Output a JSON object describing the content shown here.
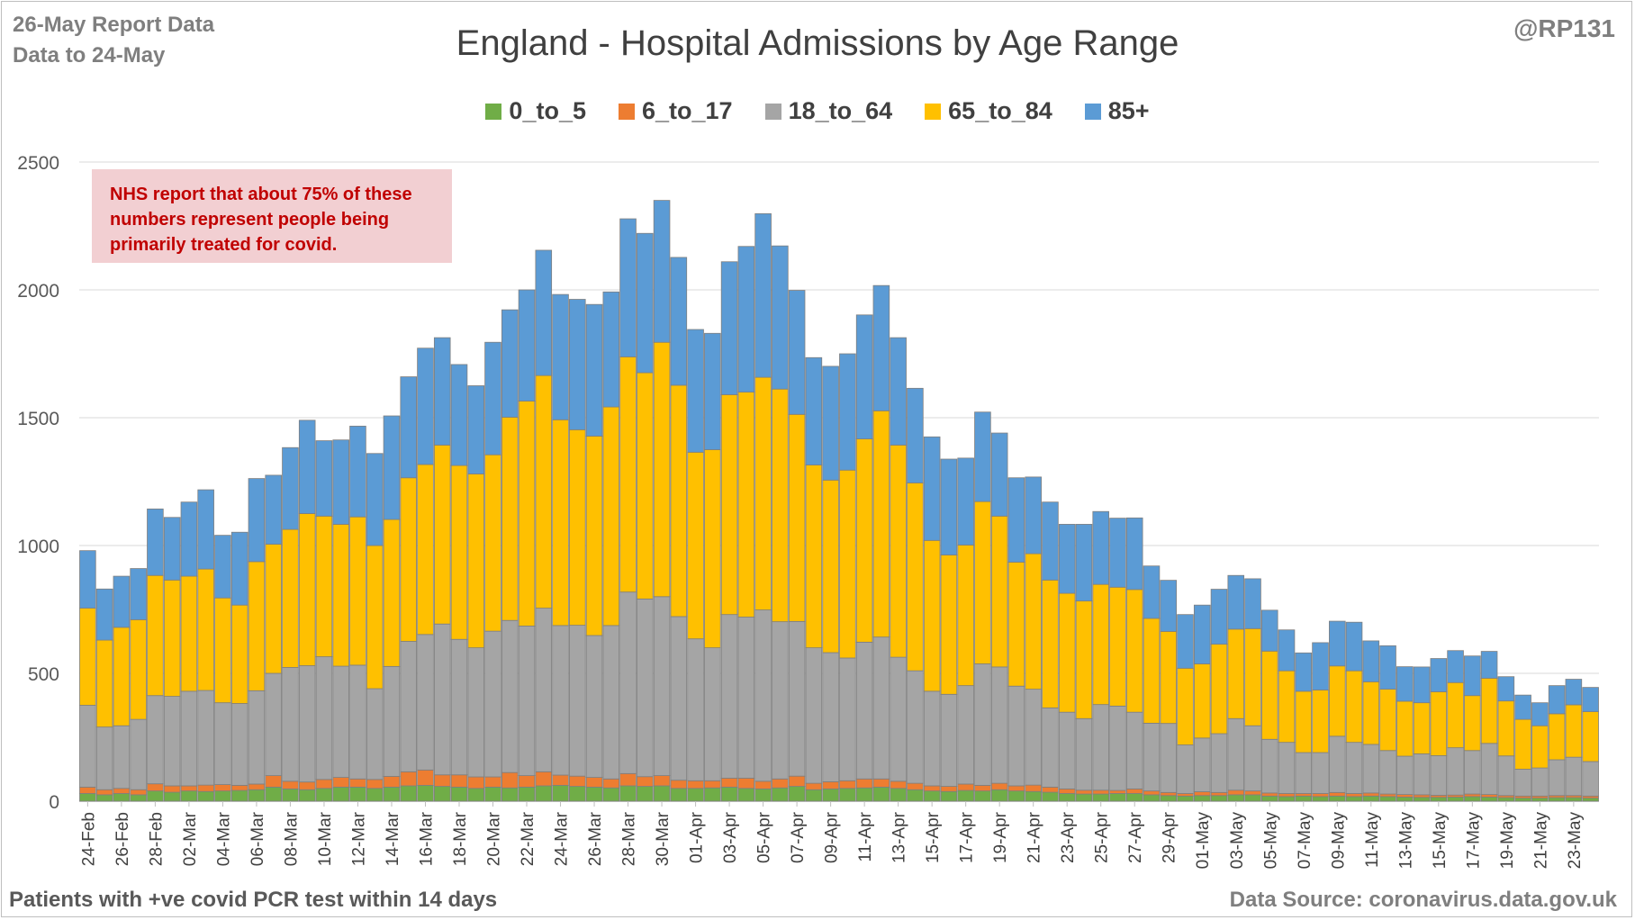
{
  "header": {
    "report_line1": "26-May Report Data",
    "report_line2": "Data to 24-May",
    "handle": "@RP131"
  },
  "footer": {
    "left": "Patients with  +ve covid PCR test within 14 days",
    "right": "Data Source: coronavirus.data.gov.uk"
  },
  "note": {
    "line1": "NHS report that about 75% of these",
    "line2": "numbers represent people being",
    "line3": "primarily treated for covid.",
    "bg_color": "#f2cfd2",
    "text_color": "#c00000"
  },
  "chart_data": {
    "type": "bar",
    "stacked": true,
    "title": "England - Hospital Admissions by Age Range",
    "ylim": [
      0,
      2500
    ],
    "yticks": [
      0,
      500,
      1000,
      1500,
      2000,
      2500
    ],
    "grid": true,
    "legend_position": "top",
    "tick_labels": [
      "24-Feb",
      "26-Feb",
      "28-Feb",
      "02-Mar",
      "04-Mar",
      "06-Mar",
      "08-Mar",
      "10-Mar",
      "12-Mar",
      "14-Mar",
      "16-Mar",
      "18-Mar",
      "20-Mar",
      "22-Mar",
      "24-Mar",
      "26-Mar",
      "28-Mar",
      "30-Mar",
      "01-Apr",
      "03-Apr",
      "05-Apr",
      "07-Apr",
      "09-Apr",
      "11-Apr",
      "13-Apr",
      "15-Apr",
      "17-Apr",
      "19-Apr",
      "21-Apr",
      "23-Apr",
      "25-Apr",
      "27-Apr",
      "29-Apr",
      "01-May",
      "03-May",
      "05-May",
      "07-May",
      "09-May",
      "11-May",
      "13-May",
      "15-May",
      "17-May",
      "19-May",
      "21-May",
      "23-May"
    ],
    "categories": [
      "24-Feb",
      "25-Feb",
      "26-Feb",
      "27-Feb",
      "28-Feb",
      "01-Mar",
      "02-Mar",
      "03-Mar",
      "04-Mar",
      "05-Mar",
      "06-Mar",
      "07-Mar",
      "08-Mar",
      "09-Mar",
      "10-Mar",
      "11-Mar",
      "12-Mar",
      "13-Mar",
      "14-Mar",
      "15-Mar",
      "16-Mar",
      "17-Mar",
      "18-Mar",
      "19-Mar",
      "20-Mar",
      "21-Mar",
      "22-Mar",
      "23-Mar",
      "24-Mar",
      "25-Mar",
      "26-Mar",
      "27-Mar",
      "28-Mar",
      "29-Mar",
      "30-Mar",
      "31-Mar",
      "01-Apr",
      "02-Apr",
      "03-Apr",
      "04-Apr",
      "05-Apr",
      "06-Apr",
      "07-Apr",
      "08-Apr",
      "09-Apr",
      "10-Apr",
      "11-Apr",
      "12-Apr",
      "13-Apr",
      "14-Apr",
      "15-Apr",
      "16-Apr",
      "17-Apr",
      "18-Apr",
      "19-Apr",
      "20-Apr",
      "21-Apr",
      "22-Apr",
      "23-Apr",
      "24-Apr",
      "25-Apr",
      "26-Apr",
      "27-Apr",
      "28-Apr",
      "29-Apr",
      "30-Apr",
      "01-May",
      "02-May",
      "03-May",
      "04-May",
      "05-May",
      "06-May",
      "07-May",
      "08-May",
      "09-May",
      "10-May",
      "11-May",
      "12-May",
      "13-May",
      "14-May",
      "15-May",
      "16-May",
      "17-May",
      "18-May",
      "19-May",
      "20-May",
      "21-May",
      "22-May",
      "23-May",
      "24-May"
    ],
    "series": [
      {
        "name": "0_to_5",
        "color": "#70ad47",
        "values": [
          30,
          25,
          30,
          25,
          40,
          35,
          40,
          38,
          40,
          42,
          45,
          55,
          48,
          45,
          50,
          55,
          55,
          50,
          55,
          60,
          62,
          58,
          55,
          50,
          55,
          52,
          55,
          60,
          62,
          58,
          55,
          52,
          60,
          58,
          60,
          50,
          50,
          52,
          55,
          50,
          48,
          52,
          58,
          45,
          48,
          50,
          52,
          55,
          50,
          45,
          40,
          38,
          42,
          40,
          45,
          40,
          38,
          35,
          30,
          28,
          28,
          30,
          30,
          25,
          22,
          20,
          22,
          22,
          25,
          25,
          20,
          18,
          20,
          18,
          20,
          18,
          20,
          18,
          16,
          15,
          15,
          16,
          18,
          16,
          14,
          12,
          12,
          14,
          14,
          12
        ]
      },
      {
        "name": "6_to_17",
        "color": "#ed7d31",
        "values": [
          25,
          20,
          20,
          20,
          28,
          25,
          20,
          25,
          25,
          20,
          22,
          45,
          30,
          30,
          35,
          38,
          32,
          35,
          42,
          55,
          60,
          45,
          48,
          45,
          40,
          60,
          45,
          55,
          40,
          40,
          38,
          35,
          48,
          38,
          40,
          32,
          30,
          28,
          35,
          40,
          30,
          35,
          40,
          25,
          28,
          30,
          35,
          32,
          28,
          25,
          20,
          20,
          25,
          22,
          25,
          20,
          25,
          20,
          18,
          15,
          15,
          12,
          18,
          15,
          12,
          10,
          15,
          12,
          18,
          15,
          12,
          12,
          10,
          12,
          14,
          12,
          12,
          10,
          10,
          10,
          8,
          8,
          10,
          10,
          8,
          8,
          8,
          8,
          8,
          8
        ]
      },
      {
        "name": "18_to_64",
        "color": "#a5a5a5",
        "values": [
          320,
          245,
          245,
          275,
          345,
          350,
          370,
          370,
          320,
          320,
          365,
          400,
          445,
          455,
          480,
          435,
          445,
          355,
          430,
          510,
          530,
          590,
          530,
          505,
          570,
          595,
          585,
          640,
          585,
          590,
          555,
          600,
          710,
          695,
          700,
          640,
          555,
          520,
          640,
          630,
          670,
          615,
          605,
          530,
          505,
          480,
          535,
          555,
          485,
          440,
          370,
          360,
          385,
          475,
          455,
          390,
          375,
          310,
          300,
          280,
          335,
          330,
          300,
          265,
          270,
          190,
          210,
          230,
          280,
          255,
          210,
          200,
          160,
          160,
          220,
          200,
          190,
          170,
          150,
          160,
          155,
          185,
          170,
          200,
          155,
          105,
          110,
          140,
          150,
          135
        ]
      },
      {
        "name": "65_to_84",
        "color": "#ffc000",
        "values": [
          380,
          340,
          385,
          390,
          470,
          455,
          450,
          475,
          410,
          385,
          505,
          505,
          540,
          595,
          550,
          555,
          580,
          560,
          575,
          640,
          665,
          700,
          680,
          680,
          690,
          795,
          880,
          910,
          805,
          765,
          780,
          855,
          920,
          885,
          995,
          905,
          730,
          775,
          860,
          880,
          910,
          910,
          810,
          715,
          675,
          735,
          795,
          885,
          830,
          735,
          590,
          545,
          550,
          635,
          590,
          485,
          530,
          500,
          465,
          460,
          470,
          465,
          480,
          410,
          360,
          300,
          290,
          350,
          350,
          380,
          345,
          280,
          240,
          245,
          275,
          280,
          245,
          240,
          215,
          200,
          250,
          255,
          215,
          255,
          215,
          195,
          165,
          180,
          205,
          195
        ]
      },
      {
        "name": "85+",
        "color": "#5b9bd5",
        "values": [
          225,
          200,
          200,
          200,
          260,
          245,
          290,
          310,
          245,
          285,
          325,
          270,
          320,
          365,
          295,
          330,
          355,
          360,
          405,
          395,
          455,
          420,
          395,
          345,
          440,
          420,
          435,
          490,
          490,
          510,
          515,
          450,
          540,
          545,
          555,
          500,
          480,
          455,
          520,
          570,
          640,
          560,
          485,
          420,
          445,
          455,
          485,
          490,
          420,
          370,
          405,
          375,
          340,
          350,
          325,
          330,
          300,
          305,
          270,
          300,
          285,
          270,
          280,
          205,
          200,
          210,
          230,
          215,
          210,
          195,
          160,
          160,
          150,
          185,
          175,
          190,
          160,
          170,
          135,
          140,
          130,
          125,
          155,
          105,
          95,
          95,
          90,
          110,
          100,
          95
        ]
      }
    ]
  }
}
